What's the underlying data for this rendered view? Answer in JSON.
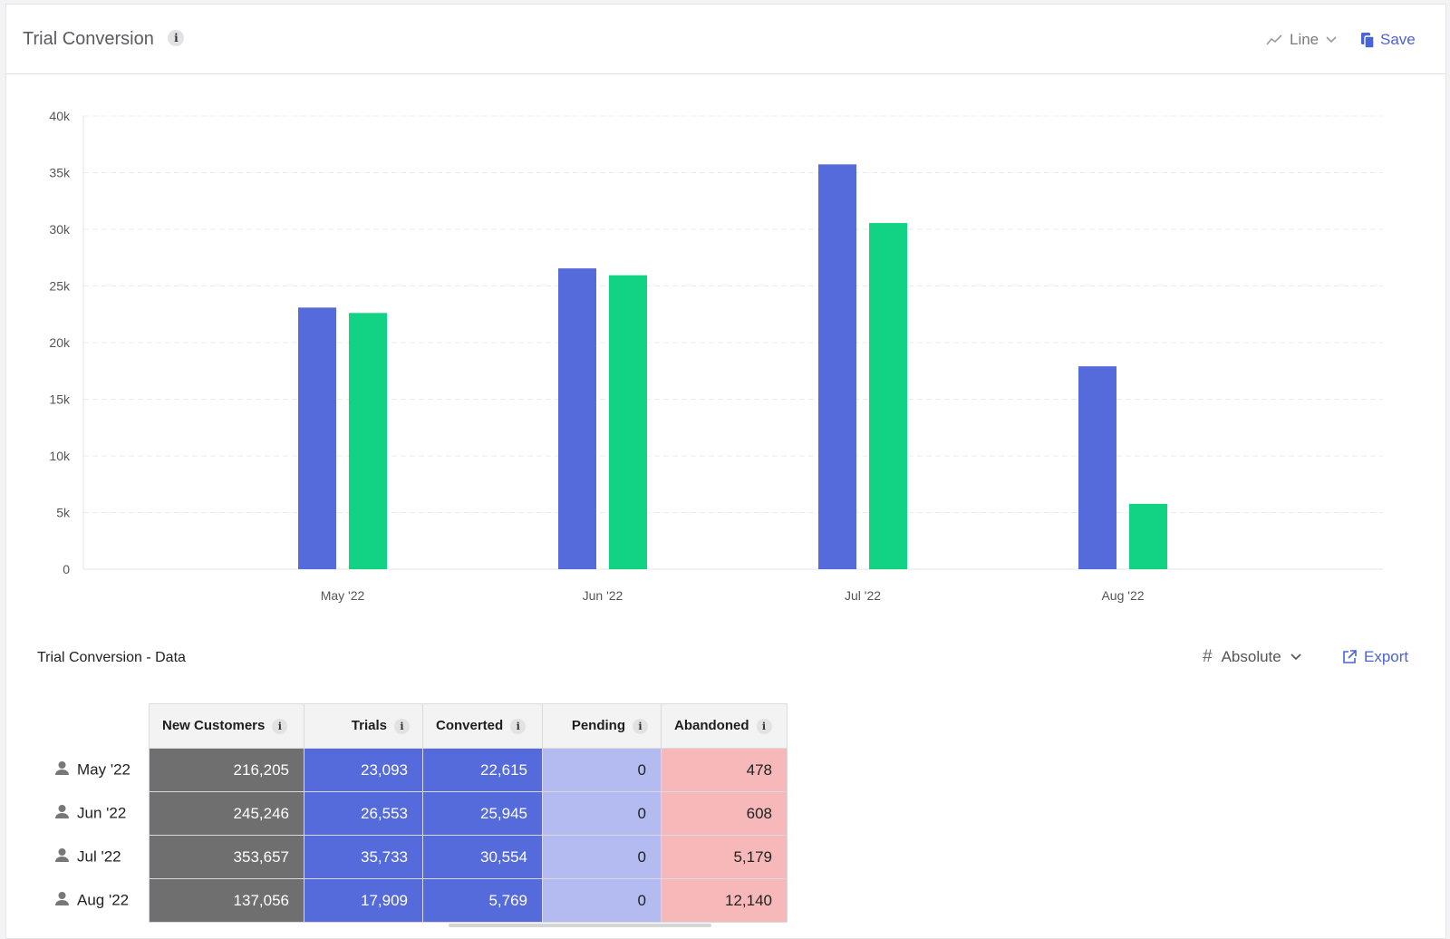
{
  "header": {
    "title": "Trial Conversion",
    "chart_type_label": "Line",
    "save_label": "Save"
  },
  "chart_data": {
    "type": "bar",
    "title": "Trial Conversion",
    "categories": [
      "May '22",
      "Jun '22",
      "Jul '22",
      "Aug '22"
    ],
    "series": [
      {
        "name": "Trials",
        "color": "#566bdb",
        "values": [
          23093,
          26553,
          35733,
          17909
        ]
      },
      {
        "name": "Converted",
        "color": "#12d283",
        "values": [
          22615,
          25945,
          30554,
          5769
        ]
      }
    ],
    "ylim": [
      0,
      40000
    ],
    "yticks": [
      0,
      5000,
      10000,
      15000,
      20000,
      25000,
      30000,
      35000,
      40000
    ],
    "ytick_labels": [
      "0",
      "5k",
      "10k",
      "15k",
      "20k",
      "25k",
      "30k",
      "35k",
      "40k"
    ],
    "grid": true
  },
  "data_section": {
    "title": "Trial Conversion - Data",
    "mode_label": "Absolute",
    "export_label": "Export"
  },
  "table": {
    "columns": [
      "New Customers",
      "Trials",
      "Converted",
      "Pending",
      "Abandoned"
    ],
    "rows": [
      {
        "label": "May '22",
        "values": [
          "216,205",
          "23,093",
          "22,615",
          "0",
          "478"
        ]
      },
      {
        "label": "Jun '22",
        "values": [
          "245,246",
          "26,553",
          "25,945",
          "0",
          "608"
        ]
      },
      {
        "label": "Jul '22",
        "values": [
          "353,657",
          "35,733",
          "30,554",
          "0",
          "5,179"
        ]
      },
      {
        "label": "Aug '22",
        "values": [
          "137,056",
          "17,909",
          "5,769",
          "0",
          "12,140"
        ]
      }
    ]
  }
}
